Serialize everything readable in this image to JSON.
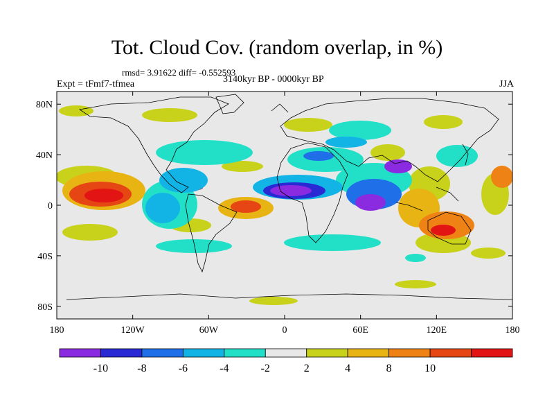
{
  "title": "Tot. Cloud Cov. (random overlap, in %)",
  "stats": "rmsd= 3.91622 diff= -0.552593",
  "experiment": "Expt = tFmf7-tfmea",
  "period": "3140kyr BP - 0000kyr BP",
  "season": "JJA",
  "longitude_ticks": [
    "180",
    "120W",
    "60W",
    "0",
    "60E",
    "120E",
    "180"
  ],
  "latitude_ticks": [
    "80N",
    "40N",
    "0",
    "40S",
    "80S"
  ],
  "colorbar": {
    "colors": [
      "#8a2be2",
      "#2a2ad4",
      "#1e6fe8",
      "#12b4e6",
      "#22e0c8",
      "#e8e8e8",
      "#c8d21a",
      "#e8b414",
      "#ee8214",
      "#e64614",
      "#e21414"
    ],
    "labels": [
      "-10",
      "-8",
      "-6",
      "-4",
      "-2",
      "2",
      "4",
      "8",
      "10"
    ]
  }
}
